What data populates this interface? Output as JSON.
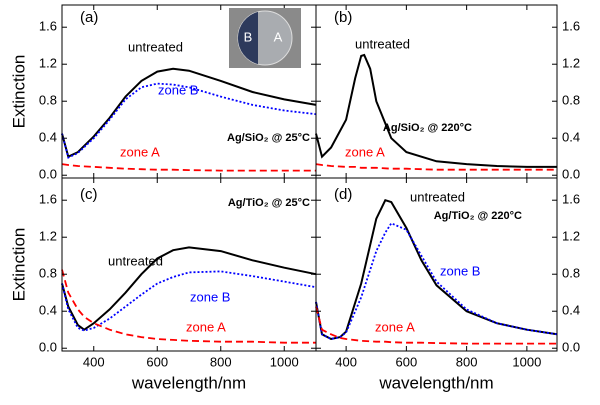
{
  "chart_data": [
    {
      "type": "line",
      "annotations": [
        "(a)",
        "Ag/SiO₂ @ 25°C"
      ],
      "inset_labels": [
        "B",
        "A"
      ],
      "y_label": "Extinction",
      "x": [
        300,
        320,
        350,
        400,
        450,
        500,
        550,
        600,
        650,
        700,
        800,
        900,
        1000,
        1100
      ],
      "series": [
        {
          "name": "untreated",
          "color": "#000000",
          "dash": "solid",
          "values": [
            0.45,
            0.2,
            0.25,
            0.42,
            0.62,
            0.85,
            1.02,
            1.12,
            1.15,
            1.13,
            1.02,
            0.9,
            0.82,
            0.76
          ]
        },
        {
          "name": "zone B",
          "color": "#0000ff",
          "dash": "dotted",
          "values": [
            0.45,
            0.19,
            0.24,
            0.4,
            0.6,
            0.82,
            0.95,
            0.99,
            0.98,
            0.95,
            0.85,
            0.76,
            0.7,
            0.66
          ]
        },
        {
          "name": "zone A",
          "color": "#ff0000",
          "dash": "dashed",
          "values": [
            0.12,
            0.11,
            0.1,
            0.09,
            0.08,
            0.07,
            0.065,
            0.06,
            0.06,
            0.055,
            0.05,
            0.05,
            0.05,
            0.05
          ]
        }
      ],
      "xlim": [
        300,
        1100
      ],
      "xticks": [
        400,
        600,
        800,
        1000
      ],
      "ylim": [
        -0.03,
        1.84
      ],
      "yticks": [
        {
          "value": 0,
          "label": "0.0"
        },
        0.4,
        0.8,
        1.2,
        1.6
      ]
    },
    {
      "type": "line",
      "annotations": [
        "(b)",
        "Ag/SiO₂ @ 220°C"
      ],
      "x": [
        300,
        320,
        350,
        400,
        430,
        450,
        460,
        480,
        500,
        550,
        600,
        700,
        800,
        900,
        1000,
        1100
      ],
      "series": [
        {
          "name": "untreated",
          "color": "#000000",
          "dash": "solid",
          "values": [
            0.45,
            0.2,
            0.3,
            0.6,
            1.05,
            1.29,
            1.3,
            1.15,
            0.8,
            0.4,
            0.25,
            0.15,
            0.12,
            0.1,
            0.09,
            0.09
          ]
        },
        {
          "name": "zone A",
          "color": "#ff0000",
          "dash": "dashed",
          "values": [
            0.12,
            0.11,
            0.1,
            0.09,
            0.09,
            0.08,
            0.08,
            0.08,
            0.08,
            0.07,
            0.07,
            0.06,
            0.06,
            0.06,
            0.06,
            0.06
          ]
        }
      ],
      "xlim": [
        300,
        1100
      ],
      "xticks": [
        400,
        600,
        800,
        1000
      ],
      "ylim": [
        -0.03,
        1.84
      ],
      "yticks": [
        {
          "value": 0,
          "label": "0.0"
        },
        0.4,
        0.8,
        1.2,
        1.6
      ]
    },
    {
      "type": "line",
      "annotations": [
        "(c)",
        "Ag/TiO₂ @ 25°C"
      ],
      "y_label": "Extinction",
      "x_label": "wavelength/nm",
      "x": [
        300,
        320,
        350,
        370,
        400,
        450,
        500,
        550,
        600,
        650,
        700,
        800,
        900,
        1000,
        1100
      ],
      "series": [
        {
          "name": "untreated",
          "color": "#000000",
          "dash": "solid",
          "values": [
            0.7,
            0.45,
            0.25,
            0.2,
            0.27,
            0.42,
            0.6,
            0.8,
            0.97,
            1.06,
            1.09,
            1.05,
            0.95,
            0.87,
            0.8
          ]
        },
        {
          "name": "zone B",
          "color": "#0000ff",
          "dash": "dotted",
          "values": [
            0.7,
            0.42,
            0.22,
            0.19,
            0.22,
            0.32,
            0.45,
            0.58,
            0.7,
            0.77,
            0.82,
            0.83,
            0.78,
            0.72,
            0.66
          ]
        },
        {
          "name": "zone A",
          "color": "#ff0000",
          "dash": "dashed",
          "values": [
            0.85,
            0.6,
            0.42,
            0.34,
            0.27,
            0.2,
            0.15,
            0.12,
            0.1,
            0.09,
            0.08,
            0.07,
            0.07,
            0.06,
            0.06
          ]
        }
      ],
      "xlim": [
        300,
        1100
      ],
      "xticks": [
        400,
        600,
        800,
        1000
      ],
      "ylim": [
        -0.03,
        1.84
      ],
      "yticks": [
        {
          "value": 0,
          "label": "0.0"
        },
        0.4,
        0.8,
        1.2,
        1.6
      ]
    },
    {
      "type": "line",
      "annotations": [
        "(d)",
        "Ag/TiO₂ @ 220°C"
      ],
      "x_label": "wavelength/nm",
      "x": [
        300,
        320,
        350,
        380,
        400,
        450,
        500,
        530,
        550,
        600,
        650,
        700,
        800,
        900,
        1000,
        1100
      ],
      "series": [
        {
          "name": "untreated",
          "color": "#000000",
          "dash": "solid",
          "values": [
            0.5,
            0.15,
            0.1,
            0.12,
            0.18,
            0.7,
            1.4,
            1.6,
            1.58,
            1.3,
            0.95,
            0.68,
            0.4,
            0.27,
            0.2,
            0.15
          ]
        },
        {
          "name": "zone B",
          "color": "#0000ff",
          "dash": "dotted",
          "values": [
            0.5,
            0.15,
            0.1,
            0.12,
            0.17,
            0.55,
            1.05,
            1.25,
            1.35,
            1.28,
            1.0,
            0.72,
            0.42,
            0.27,
            0.2,
            0.15
          ]
        },
        {
          "name": "zone A",
          "color": "#ff0000",
          "dash": "dashed",
          "values": [
            0.45,
            0.2,
            0.15,
            0.11,
            0.1,
            0.08,
            0.07,
            0.07,
            0.065,
            0.06,
            0.06,
            0.055,
            0.05,
            0.05,
            0.05,
            0.05
          ]
        }
      ],
      "xlim": [
        300,
        1100
      ],
      "xticks": [
        400,
        600,
        800,
        1000
      ],
      "ylim": [
        -0.03,
        1.84
      ],
      "yticks": [
        {
          "value": 0,
          "label": "0.0"
        },
        0.4,
        0.8,
        1.2,
        1.6
      ]
    }
  ]
}
